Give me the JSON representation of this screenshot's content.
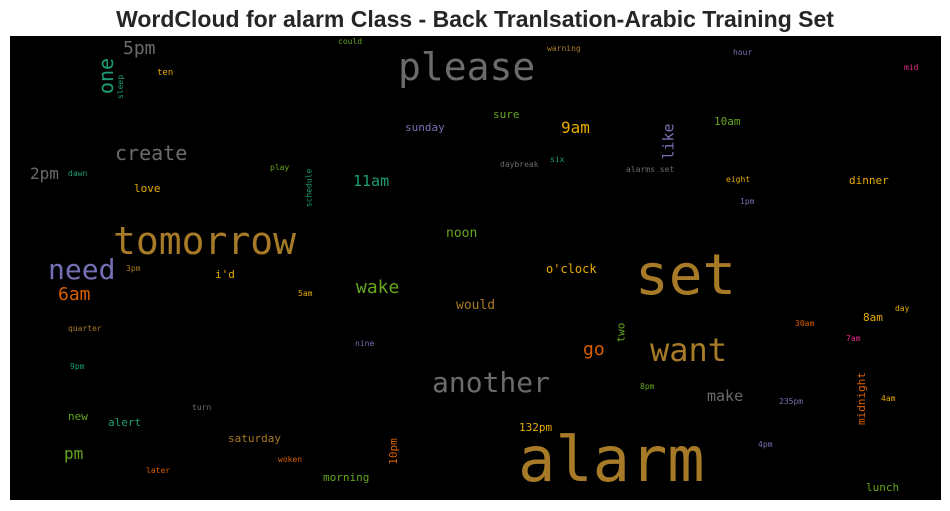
{
  "title": "WordCloud for alarm Class - Back Tranlsation-Arabic Training Set",
  "words": [
    {
      "text": "alarm",
      "color": "#a67a26"
    },
    {
      "text": "set",
      "color": "#a67a26"
    },
    {
      "text": "tomorrow",
      "color": "#a67a26"
    },
    {
      "text": "please",
      "color": "#6b6b6b"
    },
    {
      "text": "want",
      "color": "#a67a26"
    },
    {
      "text": "another",
      "color": "#6b6b6b"
    },
    {
      "text": "need",
      "color": "#7570b3"
    },
    {
      "text": "create",
      "color": "#6b6b6b"
    },
    {
      "text": "one",
      "color": "#1b9e77"
    },
    {
      "text": "5pm",
      "color": "#6b6b6b"
    },
    {
      "text": "6am",
      "color": "#d95f02"
    },
    {
      "text": "wake",
      "color": "#66a61e"
    },
    {
      "text": "2pm",
      "color": "#6b6b6b"
    },
    {
      "text": "9am",
      "color": "#e6ab02"
    },
    {
      "text": "11am",
      "color": "#1b9e77"
    },
    {
      "text": "go",
      "color": "#d95f02"
    },
    {
      "text": "make",
      "color": "#6b6b6b"
    },
    {
      "text": "pm",
      "color": "#66a61e"
    },
    {
      "text": "like",
      "color": "#7570b3"
    },
    {
      "text": "would",
      "color": "#a67a26"
    },
    {
      "text": "noon",
      "color": "#66a61e"
    },
    {
      "text": "o'clock",
      "color": "#e6ab02"
    },
    {
      "text": "sunday",
      "color": "#7570b3"
    },
    {
      "text": "sure",
      "color": "#66a61e"
    },
    {
      "text": "10am",
      "color": "#66a61e"
    },
    {
      "text": "love",
      "color": "#e6ab02"
    },
    {
      "text": "i'd",
      "color": "#e6ab02"
    },
    {
      "text": "dinner",
      "color": "#e6ab02"
    },
    {
      "text": "alert",
      "color": "#1b9e77"
    },
    {
      "text": "new",
      "color": "#66a61e"
    },
    {
      "text": "saturday",
      "color": "#a67a26"
    },
    {
      "text": "132pm",
      "color": "#e6ab02"
    },
    {
      "text": "morning",
      "color": "#66a61e"
    },
    {
      "text": "10pm",
      "color": "#d95f02"
    },
    {
      "text": "two",
      "color": "#66a61e"
    },
    {
      "text": "midnight",
      "color": "#d95f02"
    },
    {
      "text": "8am",
      "color": "#e6ab02"
    },
    {
      "text": "lunch",
      "color": "#66a61e"
    },
    {
      "text": "ten",
      "color": "#e6ab02"
    },
    {
      "text": "sleep",
      "color": "#1b9e77"
    },
    {
      "text": "could",
      "color": "#66a61e"
    },
    {
      "text": "warning",
      "color": "#a67a26"
    },
    {
      "text": "hour",
      "color": "#7570b3"
    },
    {
      "text": "mid",
      "color": "#e7298a"
    },
    {
      "text": "dawn",
      "color": "#1b9e77"
    },
    {
      "text": "play",
      "color": "#66a61e"
    },
    {
      "text": "schedule",
      "color": "#1b9e77"
    },
    {
      "text": "daybreak",
      "color": "#6b6b6b"
    },
    {
      "text": "six",
      "color": "#1b9e77"
    },
    {
      "text": "alarms set",
      "color": "#6b6b6b"
    },
    {
      "text": "eight",
      "color": "#e6ab02"
    },
    {
      "text": "1pm",
      "color": "#7570b3"
    },
    {
      "text": "3pm",
      "color": "#a67a26"
    },
    {
      "text": "5am",
      "color": "#e6ab02"
    },
    {
      "text": "quarter",
      "color": "#a67a26"
    },
    {
      "text": "nine",
      "color": "#7570b3"
    },
    {
      "text": "9pm",
      "color": "#1b9e77"
    },
    {
      "text": "turn",
      "color": "#6b6b6b"
    },
    {
      "text": "woken",
      "color": "#d95f02"
    },
    {
      "text": "later",
      "color": "#d95f02"
    },
    {
      "text": "8pm",
      "color": "#66a61e"
    },
    {
      "text": "235pm",
      "color": "#7570b3"
    },
    {
      "text": "4pm",
      "color": "#7570b3"
    },
    {
      "text": "4am",
      "color": "#e6ab02"
    },
    {
      "text": "30am",
      "color": "#d95f02"
    },
    {
      "text": "7am",
      "color": "#e7298a"
    },
    {
      "text": "day",
      "color": "#e6ab02"
    }
  ]
}
